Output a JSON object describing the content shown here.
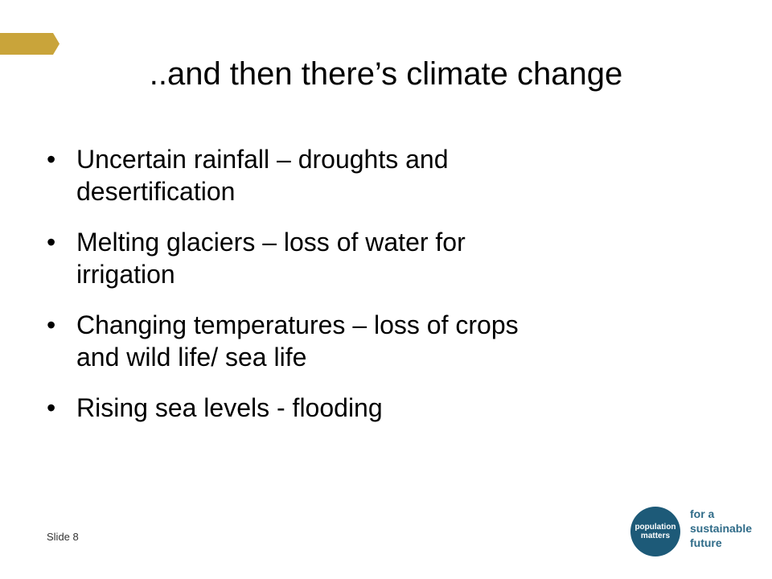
{
  "slide": {
    "title": "..and then there’s climate change",
    "bullets": [
      {
        "mark": "•",
        "line1": "Uncertain rainfall – droughts and",
        "line2": "desertification"
      },
      {
        "mark": "•",
        "line1": "Melting glaciers – loss of water for",
        "line2": "irrigation"
      },
      {
        "mark": "•",
        "line1": "Changing temperatures – loss of crops",
        "line2": "and wild life/ sea life"
      },
      {
        "mark": "•",
        "line1": "Rising sea levels - flooding",
        "line2": ""
      }
    ],
    "slide_number": "Slide 8"
  },
  "logo": {
    "circle_line1": "population",
    "circle_line2": "matters",
    "tagline": [
      "for a",
      "sustainable",
      "future"
    ],
    "circle_color": "#1d5a78",
    "text_color": "#2f6b88"
  },
  "accent": {
    "gold": "#c9a43a"
  }
}
